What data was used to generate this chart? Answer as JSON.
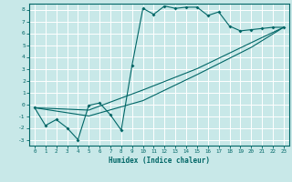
{
  "xlabel": "Humidex (Indice chaleur)",
  "bg_color": "#c8e8e8",
  "grid_color": "#ffffff",
  "line_color": "#006666",
  "xlim": [
    -0.5,
    23.5
  ],
  "ylim": [
    -3.5,
    8.5
  ],
  "xticks": [
    0,
    1,
    2,
    3,
    4,
    5,
    6,
    7,
    8,
    9,
    10,
    11,
    12,
    13,
    14,
    15,
    16,
    17,
    18,
    19,
    20,
    21,
    22,
    23
  ],
  "yticks": [
    -3,
    -2,
    -1,
    0,
    1,
    2,
    3,
    4,
    5,
    6,
    7,
    8
  ],
  "line1_x": [
    0,
    1,
    2,
    3,
    4,
    5,
    6,
    7,
    8,
    9,
    10,
    11,
    12,
    13,
    14,
    15,
    16,
    17,
    18,
    19,
    20,
    21,
    22,
    23
  ],
  "line1_y": [
    -0.3,
    -1.8,
    -1.3,
    -2.0,
    -3.0,
    -0.1,
    0.1,
    -0.9,
    -2.2,
    3.3,
    8.1,
    7.6,
    8.3,
    8.1,
    8.2,
    8.2,
    7.5,
    7.8,
    6.6,
    6.2,
    6.3,
    6.4,
    6.5,
    6.5
  ],
  "line2_x": [
    0,
    23
  ],
  "line2_y": [
    -0.3,
    6.5
  ],
  "line3_x": [
    0,
    23
  ],
  "line3_y": [
    -0.3,
    6.5
  ],
  "line2_ctrl": [
    [
      0,
      -0.3
    ],
    [
      5,
      -0.5
    ],
    [
      10,
      1.2
    ],
    [
      15,
      3.0
    ],
    [
      20,
      5.2
    ],
    [
      23,
      6.5
    ]
  ],
  "line3_ctrl": [
    [
      0,
      -0.3
    ],
    [
      5,
      -1.0
    ],
    [
      10,
      0.3
    ],
    [
      15,
      2.5
    ],
    [
      20,
      4.8
    ],
    [
      23,
      6.5
    ]
  ]
}
